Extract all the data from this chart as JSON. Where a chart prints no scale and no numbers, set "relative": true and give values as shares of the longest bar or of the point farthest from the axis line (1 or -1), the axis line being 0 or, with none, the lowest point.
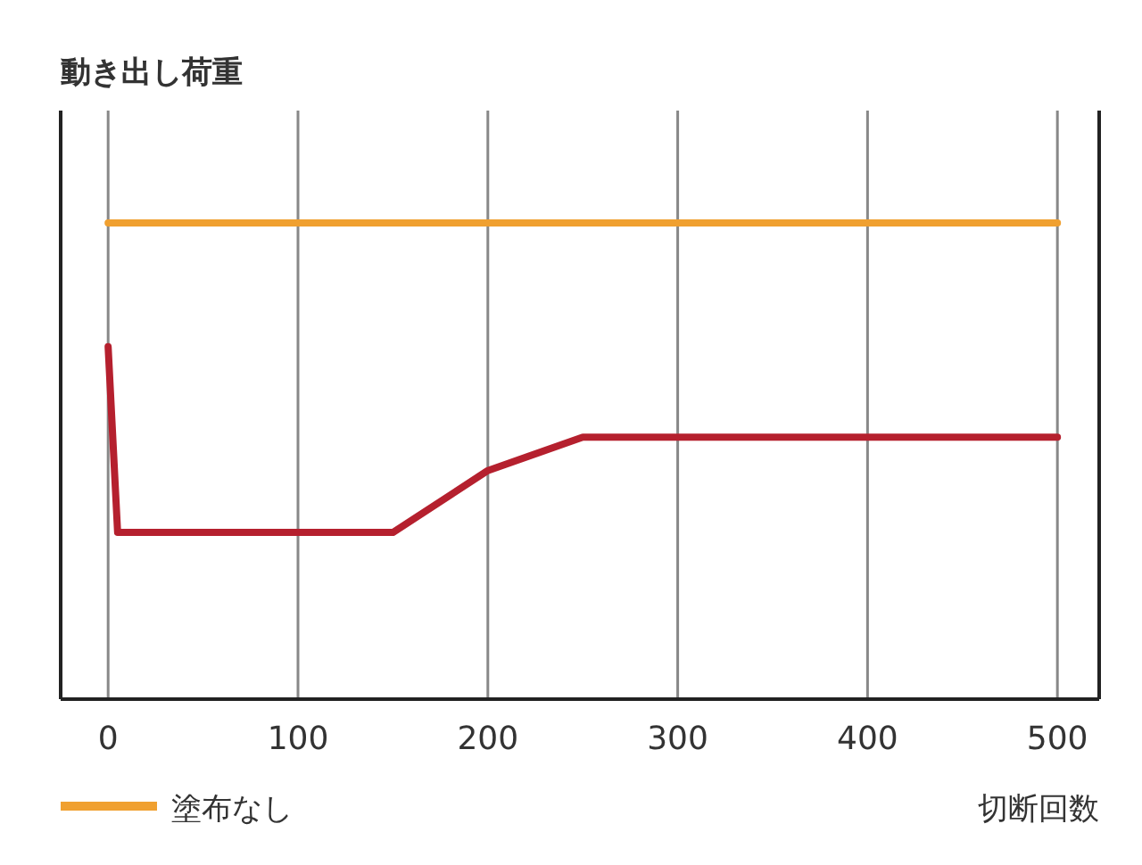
{
  "chart_data": {
    "type": "line",
    "ylabel": "動き出し荷重",
    "xlabel": "切断回数",
    "relative": true,
    "xlim": [
      -25,
      522
    ],
    "xticks": [
      0,
      100,
      200,
      300,
      400,
      500
    ],
    "grid": "x",
    "legend": "bottom left",
    "marker": "none",
    "line_style": "solid",
    "series": [
      {
        "color": "#b5202e",
        "x": [
          0,
          5,
          150,
          200,
          250,
          500
        ],
        "values": [
          0.74,
          0.35,
          0.35,
          0.48,
          0.55,
          0.55
        ]
      },
      {
        "name": "塗布なし",
        "color": "#f0a030",
        "x": [
          0,
          500
        ],
        "values": [
          1,
          1
        ]
      }
    ]
  }
}
